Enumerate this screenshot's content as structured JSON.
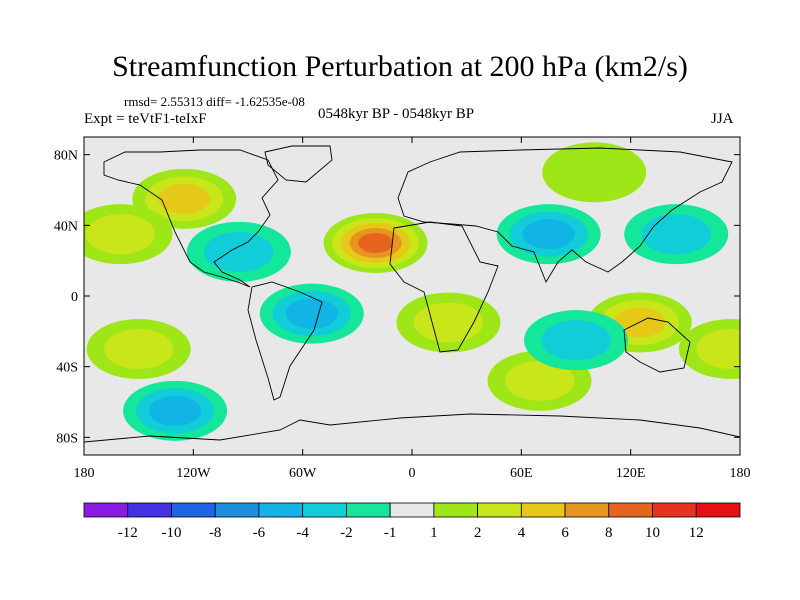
{
  "title": "Streamfunction Perturbation at 200 hPa (km2/s)",
  "stats_line": "rmsd= 2.55313  diff= -1.62535e-08",
  "experiment": "Expt = teVtF1-teIxF",
  "period": "0548kyr BP - 0548kyr BP",
  "season": "JJA",
  "map": {
    "lon_range": [
      -180,
      180
    ],
    "lat_range": [
      -90,
      90
    ],
    "background_color": "#e8e8e8",
    "x_ticks": [
      {
        "lon": -180,
        "label": "180"
      },
      {
        "lon": -120,
        "label": "120W"
      },
      {
        "lon": -60,
        "label": "60W"
      },
      {
        "lon": 0,
        "label": "0"
      },
      {
        "lon": 60,
        "label": "60E"
      },
      {
        "lon": 120,
        "label": "120E"
      },
      {
        "lon": 180,
        "label": "180"
      }
    ],
    "y_ticks": [
      {
        "lat": 80,
        "label": "80N"
      },
      {
        "lat": 40,
        "label": "40N"
      },
      {
        "lat": 0,
        "label": "0"
      },
      {
        "lat": -40,
        "label": "40S"
      },
      {
        "lat": -80,
        "label": "80S"
      }
    ]
  },
  "chart_data": {
    "type": "heatmap",
    "variable": "streamfunction perturbation",
    "units": "km2/s",
    "level": "200 hPa",
    "anomaly_centers": [
      {
        "name": "North Atlantic / Africa high",
        "lon": -20,
        "lat": 30,
        "value": 9
      },
      {
        "name": "North America high",
        "lon": -125,
        "lat": 55,
        "value": 6
      },
      {
        "name": "Siberia high",
        "lon": 100,
        "lat": 70,
        "value": 2
      },
      {
        "name": "Central North Pacific high",
        "lon": -160,
        "lat": 35,
        "value": 3
      },
      {
        "name": "Australia high",
        "lon": 125,
        "lat": -15,
        "value": 5
      },
      {
        "name": "South Pacific high",
        "lon": -150,
        "lat": -30,
        "value": 4
      },
      {
        "name": "South Atlantic / Africa high",
        "lon": 20,
        "lat": -15,
        "value": 3
      },
      {
        "name": "South Indian Ocean high",
        "lon": 70,
        "lat": -48,
        "value": 3
      },
      {
        "name": "Southwest Pacific high",
        "lon": 175,
        "lat": -30,
        "value": 4
      },
      {
        "name": "Eurasia low",
        "lon": 75,
        "lat": 35,
        "value": -5
      },
      {
        "name": "Atlantic / South America low",
        "lon": -55,
        "lat": -10,
        "value": -4
      },
      {
        "name": "Gulf of Mexico low",
        "lon": -95,
        "lat": 25,
        "value": -3
      },
      {
        "name": "Southern Ocean low",
        "lon": -130,
        "lat": -65,
        "value": -4
      },
      {
        "name": "Indian Ocean low",
        "lon": 90,
        "lat": -25,
        "value": -2
      },
      {
        "name": "West Pacific low",
        "lon": 145,
        "lat": 35,
        "value": -2
      }
    ],
    "colorbar": {
      "labels": [
        "-12",
        "-10",
        "-8",
        "-6",
        "-4",
        "-2",
        "-1",
        "1",
        "2",
        "4",
        "6",
        "8",
        "10",
        "12"
      ],
      "colors": [
        "#8b1ae5",
        "#4532e6",
        "#1e64e6",
        "#1b8ee0",
        "#12b4e6",
        "#11cdd8",
        "#14e69a",
        "#e8e8e8",
        "#9fe619",
        "#c8e619",
        "#e6c819",
        "#e6961e",
        "#e6641e",
        "#e6321e",
        "#e60f14"
      ]
    }
  }
}
